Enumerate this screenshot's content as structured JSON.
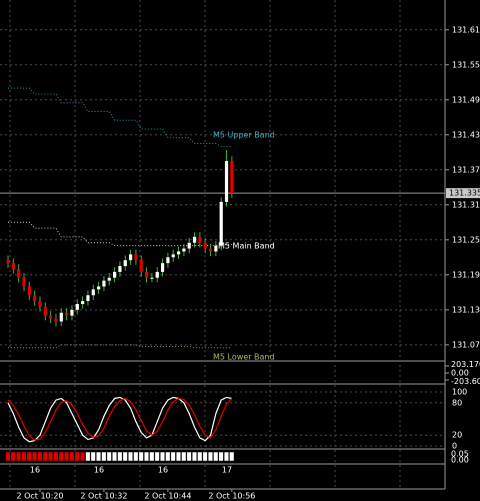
{
  "chart_data": {
    "type": "candlestick",
    "categories": [
      null,
      null,
      null,
      null,
      null,
      null,
      "2 Oct 10:20",
      null,
      null,
      null,
      null,
      null,
      null,
      null,
      null,
      null,
      null,
      null,
      "2 Oct 10:32",
      null,
      null,
      null,
      null,
      null,
      null,
      null,
      null,
      null,
      null,
      null,
      "2 Oct 10:44",
      null,
      null,
      null,
      null,
      null,
      null,
      null,
      null,
      null,
      null,
      null,
      "2 Oct 10:56"
    ],
    "open": [
      131.22,
      131.215,
      131.205,
      131.19,
      131.175,
      131.16,
      131.15,
      131.14,
      131.125,
      131.12,
      131.115,
      131.13,
      131.125,
      131.135,
      131.145,
      131.15,
      131.16,
      131.17,
      131.175,
      131.185,
      131.19,
      131.2,
      131.21,
      131.22,
      131.23,
      131.22,
      131.2,
      131.19,
      131.19,
      131.2,
      131.215,
      131.225,
      131.23,
      131.235,
      131.24,
      131.25,
      131.26,
      131.25,
      131.24,
      131.235,
      131.245,
      131.32,
      131.39
    ],
    "high": [
      131.228,
      131.223,
      131.213,
      131.198,
      131.183,
      131.168,
      131.158,
      131.148,
      131.133,
      131.128,
      131.138,
      131.138,
      131.143,
      131.153,
      131.158,
      131.168,
      131.178,
      131.183,
      131.193,
      131.198,
      131.208,
      131.218,
      131.228,
      131.238,
      131.238,
      131.228,
      131.208,
      131.198,
      131.208,
      131.223,
      131.233,
      131.238,
      131.243,
      131.248,
      131.258,
      131.268,
      131.268,
      131.258,
      131.248,
      131.253,
      131.328,
      131.409,
      131.398
    ],
    "low": [
      131.207,
      131.197,
      131.182,
      131.167,
      131.152,
      131.142,
      131.132,
      131.117,
      131.112,
      131.107,
      131.107,
      131.117,
      131.117,
      131.127,
      131.137,
      131.142,
      131.152,
      131.162,
      131.167,
      131.177,
      131.182,
      131.192,
      131.202,
      131.212,
      131.212,
      131.192,
      131.182,
      131.182,
      131.182,
      131.192,
      131.207,
      131.217,
      131.222,
      131.227,
      131.232,
      131.242,
      131.242,
      131.232,
      131.227,
      131.227,
      131.237,
      131.312,
      131.327
    ],
    "close": [
      131.215,
      131.205,
      131.19,
      131.175,
      131.16,
      131.15,
      131.14,
      131.125,
      131.12,
      131.115,
      131.13,
      131.125,
      131.135,
      131.145,
      131.15,
      131.16,
      131.17,
      131.175,
      131.185,
      131.19,
      131.2,
      131.21,
      131.22,
      131.23,
      131.22,
      131.2,
      131.19,
      131.19,
      131.2,
      131.215,
      131.225,
      131.23,
      131.235,
      131.24,
      131.25,
      131.26,
      131.25,
      131.24,
      131.235,
      131.245,
      131.32,
      131.39,
      131.335
    ],
    "up_color": "#ffffff",
    "down_color": "#e00000",
    "ylim": [
      131.049,
      131.666
    ],
    "yticks": [
      131.615,
      131.555,
      131.495,
      131.435,
      131.375,
      131.315,
      131.255,
      131.195,
      131.135,
      131.075
    ],
    "last_price": 131.335,
    "bands": [
      {
        "name": "M5 Upper Band",
        "color": "#3cb4c8",
        "values": [
          131.515,
          131.515,
          131.515,
          131.515,
          131.515,
          131.505,
          131.505,
          131.505,
          131.505,
          131.505,
          131.49,
          131.49,
          131.49,
          131.49,
          131.49,
          131.475,
          131.475,
          131.475,
          131.475,
          131.475,
          131.46,
          131.46,
          131.46,
          131.46,
          131.46,
          131.445,
          131.445,
          131.445,
          131.445,
          131.445,
          131.43,
          131.43,
          131.43,
          131.43,
          131.43,
          131.42,
          131.42,
          131.42,
          131.42,
          131.42,
          131.415,
          131.415,
          131.415
        ]
      },
      {
        "name": "M5 Main Band",
        "color": "#ffffff",
        "values": [
          131.285,
          131.285,
          131.285,
          131.285,
          131.285,
          131.275,
          131.275,
          131.275,
          131.275,
          131.275,
          131.26,
          131.26,
          131.26,
          131.26,
          131.26,
          131.25,
          131.25,
          131.25,
          131.25,
          131.25,
          131.245,
          131.245,
          131.245,
          131.245,
          131.245,
          131.245,
          131.245,
          131.245,
          131.245,
          131.245,
          131.245,
          131.245,
          131.245,
          131.245,
          131.245,
          131.245,
          131.245,
          131.245,
          131.245,
          131.245,
          131.247,
          131.247,
          131.247
        ]
      },
      {
        "name": "M5 Lower Band",
        "color": "#b4b464",
        "values": [
          131.07,
          131.07,
          131.07,
          131.07,
          131.07,
          131.07,
          131.07,
          131.07,
          131.07,
          131.07,
          131.075,
          131.075,
          131.075,
          131.075,
          131.075,
          131.075,
          131.075,
          131.075,
          131.075,
          131.075,
          131.075,
          131.075,
          131.075,
          131.075,
          131.075,
          131.072,
          131.072,
          131.072,
          131.072,
          131.072,
          131.072,
          131.072,
          131.072,
          131.072,
          131.072,
          131.07,
          131.07,
          131.07,
          131.07,
          131.07,
          131.07,
          131.07,
          131.07
        ]
      }
    ],
    "panel1": {
      "ylim": [
        -203.6,
        203.17
      ],
      "yticks": [
        {
          "value": 203.17,
          "label": "203.170"
        },
        {
          "value": 0,
          "label": "0.00"
        },
        {
          "value": -203.6,
          "label": "-203.600"
        }
      ]
    },
    "stochastic": {
      "ylim": [
        0,
        100
      ],
      "yticks": [
        100,
        80,
        20,
        0
      ],
      "series": [
        {
          "color": "#ffffff",
          "values": [
            80,
            60,
            35,
            15,
            8,
            10,
            20,
            45,
            70,
            85,
            88,
            80,
            60,
            40,
            20,
            12,
            15,
            30,
            55,
            75,
            88,
            90,
            85,
            70,
            45,
            25,
            15,
            20,
            45,
            70,
            85,
            90,
            88,
            80,
            60,
            35,
            15,
            10,
            20,
            60,
            85,
            90,
            88
          ]
        },
        {
          "color": "#e00000",
          "values": [
            85,
            75,
            58,
            37,
            19,
            11,
            13,
            25,
            45,
            67,
            81,
            84,
            76,
            60,
            40,
            24,
            16,
            19,
            33,
            55,
            73,
            84,
            88,
            82,
            67,
            47,
            28,
            20,
            27,
            45,
            67,
            82,
            88,
            86,
            76,
            58,
            37,
            20,
            15,
            30,
            55,
            78,
            88
          ]
        }
      ]
    },
    "panel3": {
      "yticks": [
        {
          "value": 0.05,
          "label": "0.05"
        },
        {
          "value": 0,
          "label": "0.00"
        }
      ]
    },
    "day_labels": [
      "16",
      "16",
      "16",
      "17"
    ]
  }
}
